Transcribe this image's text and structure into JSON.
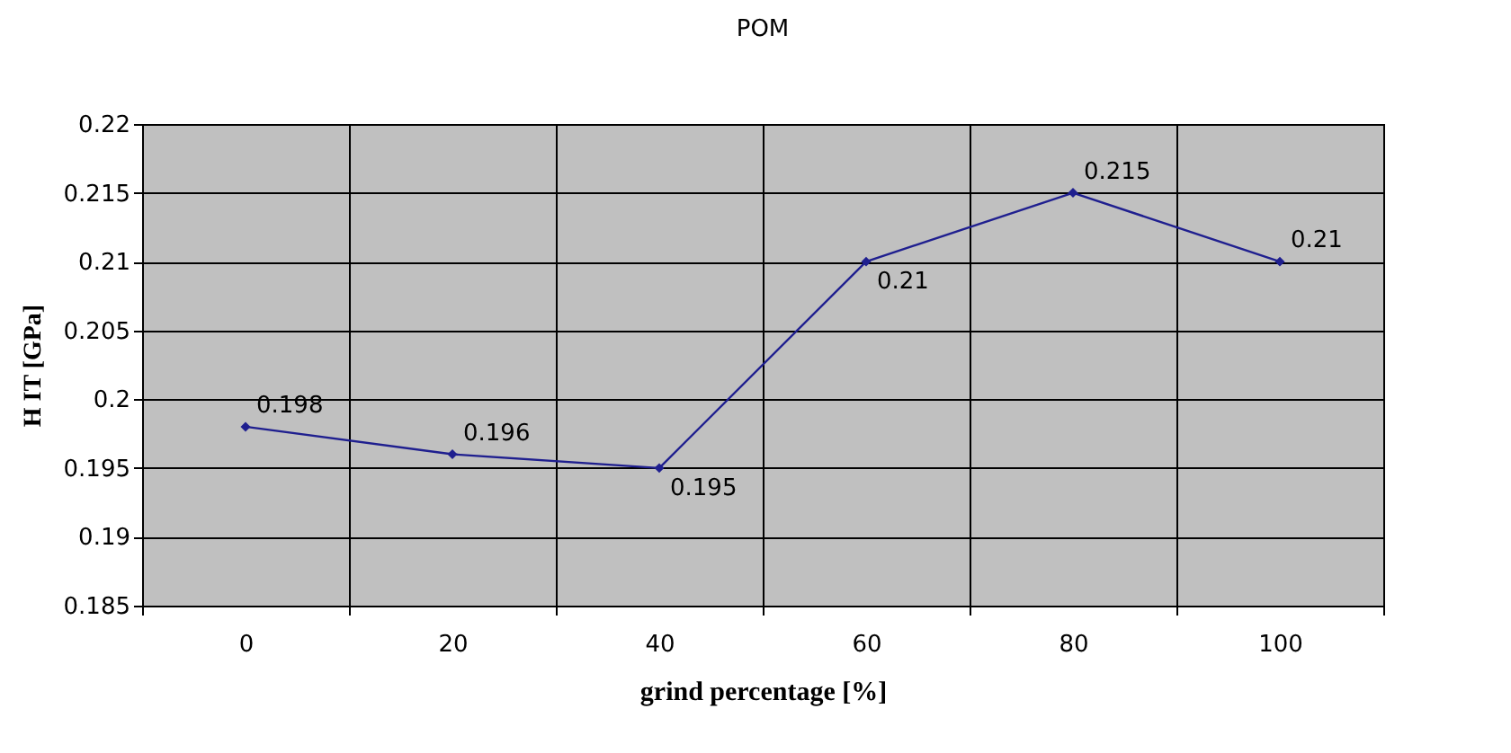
{
  "chart_data": {
    "type": "line",
    "title": "POM",
    "xlabel": "grind percentage [%]",
    "ylabel": "H IT [GPa]",
    "categories": [
      "0",
      "20",
      "40",
      "60",
      "80",
      "100"
    ],
    "series": [
      {
        "color": "#1f1f8f",
        "values": [
          0.198,
          0.196,
          0.195,
          0.21,
          0.215,
          0.21
        ]
      }
    ],
    "ylim": [
      0.185,
      0.22
    ],
    "yticks": [
      0.185,
      0.19,
      0.195,
      0.2,
      0.205,
      0.21,
      0.215,
      0.22
    ],
    "grid": true,
    "marker": "diamond",
    "line_style": "solid",
    "data_labels": true
  }
}
